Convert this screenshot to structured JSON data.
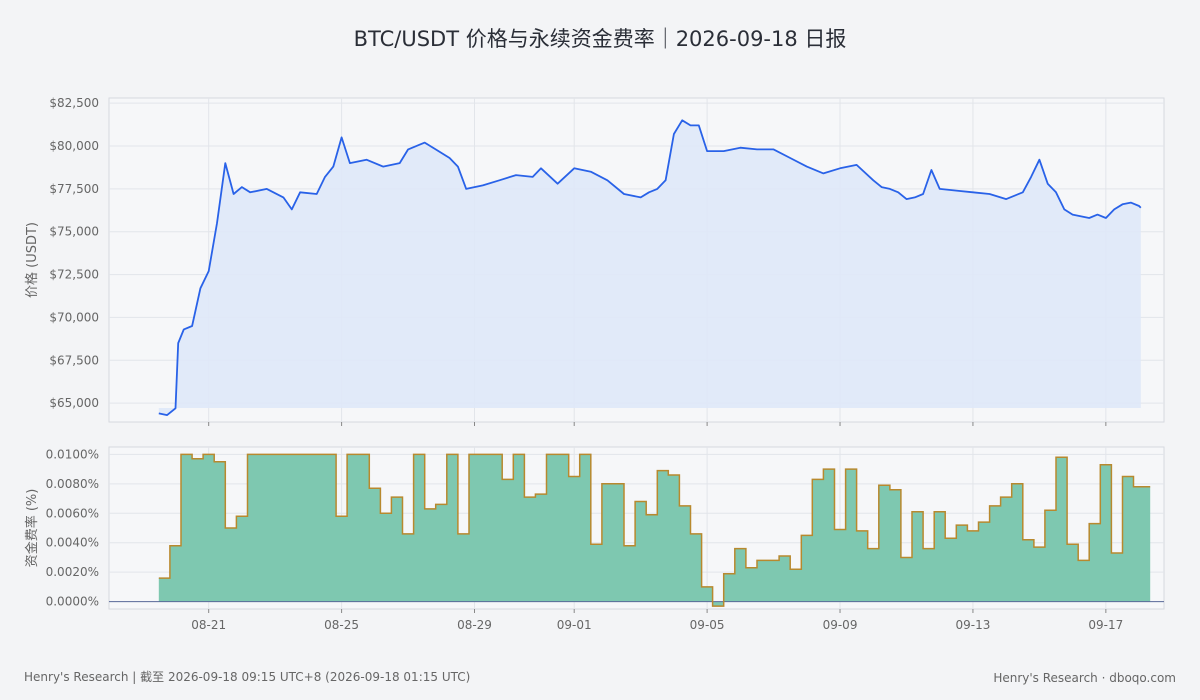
{
  "title": "BTC/USDT 价格与永续资金费率｜2026-09-18 日报",
  "footer": {
    "left": "Henry's Research | 截至 2026-09-18 09:15 UTC+8 (2026-09-18 01:15 UTC)",
    "right": "Henry's Research · dboqo.com"
  },
  "colors": {
    "price_line": "#2962e8",
    "price_fill": "#dfe8f8",
    "funding_fill": "#7ec8b0",
    "funding_line": "#b8892e",
    "zero_line": "#5a6a9a",
    "grid": "#e2e5ea",
    "panel_bg": "#f6f7f9",
    "panel_border": "#d6d9df"
  },
  "chart_data": [
    {
      "type": "line",
      "ylabel": "价格 (USDT)",
      "y_ticks": [
        "$65,000",
        "$67,500",
        "$70,000",
        "$72,500",
        "$75,000",
        "$77,500",
        "$80,000",
        "$82,500"
      ],
      "y_tick_values": [
        65000,
        67500,
        70000,
        72500,
        75000,
        77500,
        80000,
        82500
      ],
      "ylim": [
        63900,
        82800
      ],
      "xlim": [
        "2026-08-18 00:00",
        "2026-09-18 18:00"
      ],
      "area_fill": true,
      "grid": true,
      "series": [
        {
          "x": [
            "2026-08-19 12:00",
            "2026-08-19 18:00",
            "2026-08-20 00:00",
            "2026-08-20 02:00",
            "2026-08-20 06:00",
            "2026-08-20 12:00",
            "2026-08-20 18:00",
            "2026-08-21 00:00",
            "2026-08-21 06:00",
            "2026-08-21 12:00",
            "2026-08-21 18:00",
            "2026-08-22 00:00",
            "2026-08-22 06:00",
            "2026-08-22 18:00",
            "2026-08-23 06:00",
            "2026-08-23 12:00",
            "2026-08-23 18:00",
            "2026-08-24 06:00",
            "2026-08-24 12:00",
            "2026-08-24 18:00",
            "2026-08-25 00:00",
            "2026-08-25 06:00",
            "2026-08-25 18:00",
            "2026-08-26 06:00",
            "2026-08-26 18:00",
            "2026-08-27 00:00",
            "2026-08-27 12:00",
            "2026-08-27 20:00",
            "2026-08-28 06:00",
            "2026-08-28 12:00",
            "2026-08-28 18:00",
            "2026-08-29 06:00",
            "2026-08-29 18:00",
            "2026-08-30 06:00",
            "2026-08-30 18:00",
            "2026-08-31 00:00",
            "2026-08-31 12:00",
            "2026-09-01 00:00",
            "2026-09-01 12:00",
            "2026-09-02 00:00",
            "2026-09-02 12:00",
            "2026-09-03 00:00",
            "2026-09-03 06:00",
            "2026-09-03 12:00",
            "2026-09-03 18:00",
            "2026-09-04 00:00",
            "2026-09-04 06:00",
            "2026-09-04 12:00",
            "2026-09-04 18:00",
            "2026-09-05 00:00",
            "2026-09-05 12:00",
            "2026-09-06 00:00",
            "2026-09-06 12:00",
            "2026-09-07 00:00",
            "2026-09-07 12:00",
            "2026-09-08 00:00",
            "2026-09-08 12:00",
            "2026-09-09 00:00",
            "2026-09-09 12:00",
            "2026-09-10 00:00",
            "2026-09-10 06:00",
            "2026-09-10 12:00",
            "2026-09-10 18:00",
            "2026-09-11 00:00",
            "2026-09-11 06:00",
            "2026-09-11 12:00",
            "2026-09-11 18:00",
            "2026-09-12 00:00",
            "2026-09-12 12:00",
            "2026-09-13 00:00",
            "2026-09-13 12:00",
            "2026-09-14 00:00",
            "2026-09-14 12:00",
            "2026-09-14 18:00",
            "2026-09-15 00:00",
            "2026-09-15 06:00",
            "2026-09-15 12:00",
            "2026-09-15 18:00",
            "2026-09-16 00:00",
            "2026-09-16 12:00",
            "2026-09-16 18:00",
            "2026-09-17 00:00",
            "2026-09-17 06:00",
            "2026-09-17 12:00",
            "2026-09-17 18:00",
            "2026-09-18 00:00",
            "2026-09-18 01:15"
          ],
          "y": [
            64400,
            64300,
            64700,
            68500,
            69300,
            69500,
            71700,
            72700,
            75500,
            79000,
            77200,
            77600,
            77300,
            77500,
            77000,
            76300,
            77300,
            77200,
            78200,
            78800,
            80500,
            79000,
            79200,
            78800,
            79000,
            79800,
            80200,
            79800,
            79300,
            78800,
            77500,
            77700,
            78000,
            78300,
            78200,
            78700,
            77800,
            78700,
            78500,
            78000,
            77200,
            77000,
            77300,
            77500,
            78000,
            80700,
            81500,
            81200,
            81200,
            79700,
            79700,
            79900,
            79800,
            79800,
            79300,
            78800,
            78400,
            78700,
            78900,
            78000,
            77600,
            77500,
            77300,
            76900,
            77000,
            77200,
            78600,
            77500,
            77400,
            77300,
            77200,
            76900,
            77300,
            78200,
            79200,
            77800,
            77300,
            76300,
            76000,
            75800,
            76000,
            75800,
            76300,
            76600,
            76700,
            76500,
            76400
          ]
        }
      ]
    },
    {
      "type": "area",
      "ylabel": "资金费率 (%)",
      "y_ticks": [
        "0.0000%",
        "0.0020%",
        "0.0040%",
        "0.0060%",
        "0.0080%",
        "0.0100%"
      ],
      "y_tick_values": [
        0,
        0.002,
        0.004,
        0.006,
        0.008,
        0.01
      ],
      "ylim": [
        -0.0005,
        0.0105
      ],
      "xlim": [
        "2026-08-18 00:00",
        "2026-09-18 18:00"
      ],
      "x_ticks": [
        "08-21",
        "08-25",
        "08-29",
        "09-01",
        "09-05",
        "09-09",
        "09-13",
        "09-17"
      ],
      "x_tick_values": [
        "2026-08-21",
        "2026-08-25",
        "2026-08-29",
        "2026-09-01",
        "2026-09-05",
        "2026-09-09",
        "2026-09-13",
        "2026-09-17"
      ],
      "step": true,
      "grid": true,
      "series": [
        {
          "x": [
            "2026-08-19 12:00",
            "2026-08-19 20:00",
            "2026-08-20 04:00",
            "2026-08-20 12:00",
            "2026-08-20 20:00",
            "2026-08-21 04:00",
            "2026-08-21 12:00",
            "2026-08-21 20:00",
            "2026-08-22 04:00",
            "2026-08-22 12:00",
            "2026-08-22 20:00",
            "2026-08-23 04:00",
            "2026-08-23 12:00",
            "2026-08-23 20:00",
            "2026-08-24 04:00",
            "2026-08-24 12:00",
            "2026-08-24 20:00",
            "2026-08-25 04:00",
            "2026-08-25 12:00",
            "2026-08-25 20:00",
            "2026-08-26 04:00",
            "2026-08-26 12:00",
            "2026-08-26 20:00",
            "2026-08-27 04:00",
            "2026-08-27 12:00",
            "2026-08-27 20:00",
            "2026-08-28 04:00",
            "2026-08-28 12:00",
            "2026-08-28 20:00",
            "2026-08-29 04:00",
            "2026-08-29 12:00",
            "2026-08-29 20:00",
            "2026-08-30 04:00",
            "2026-08-30 12:00",
            "2026-08-30 20:00",
            "2026-08-31 04:00",
            "2026-08-31 12:00",
            "2026-08-31 20:00",
            "2026-09-01 04:00",
            "2026-09-01 12:00",
            "2026-09-01 20:00",
            "2026-09-02 04:00",
            "2026-09-02 12:00",
            "2026-09-02 20:00",
            "2026-09-03 04:00",
            "2026-09-03 12:00",
            "2026-09-03 20:00",
            "2026-09-04 04:00",
            "2026-09-04 12:00",
            "2026-09-04 20:00",
            "2026-09-05 04:00",
            "2026-09-05 12:00",
            "2026-09-05 20:00",
            "2026-09-06 04:00",
            "2026-09-06 12:00",
            "2026-09-06 20:00",
            "2026-09-07 04:00",
            "2026-09-07 12:00",
            "2026-09-07 20:00",
            "2026-09-08 04:00",
            "2026-09-08 12:00",
            "2026-09-08 20:00",
            "2026-09-09 04:00",
            "2026-09-09 12:00",
            "2026-09-09 20:00",
            "2026-09-10 04:00",
            "2026-09-10 12:00",
            "2026-09-10 20:00",
            "2026-09-11 04:00",
            "2026-09-11 12:00",
            "2026-09-11 20:00",
            "2026-09-12 04:00",
            "2026-09-12 12:00",
            "2026-09-12 20:00",
            "2026-09-13 04:00",
            "2026-09-13 12:00",
            "2026-09-13 20:00",
            "2026-09-14 04:00",
            "2026-09-14 12:00",
            "2026-09-14 20:00",
            "2026-09-15 04:00",
            "2026-09-15 12:00",
            "2026-09-15 20:00",
            "2026-09-16 04:00",
            "2026-09-16 12:00",
            "2026-09-16 20:00",
            "2026-09-17 04:00",
            "2026-09-17 12:00",
            "2026-09-17 20:00",
            "2026-09-18 04:00",
            "2026-09-18 08:00"
          ],
          "y": [
            0.0016,
            0.0038,
            0.01,
            0.0097,
            0.01,
            0.0095,
            0.005,
            0.0058,
            0.01,
            0.01,
            0.01,
            0.01,
            0.01,
            0.01,
            0.01,
            0.01,
            0.0058,
            0.01,
            0.01,
            0.0077,
            0.006,
            0.0071,
            0.0046,
            0.01,
            0.0063,
            0.0066,
            0.01,
            0.0046,
            0.01,
            0.01,
            0.01,
            0.0083,
            0.01,
            0.0071,
            0.0073,
            0.01,
            0.01,
            0.0085,
            0.01,
            0.0039,
            0.008,
            0.008,
            0.0038,
            0.0068,
            0.0059,
            0.0089,
            0.0086,
            0.0065,
            0.0046,
            0.001,
            -0.0003,
            0.0019,
            0.0036,
            0.0023,
            0.0028,
            0.0028,
            0.0031,
            0.0022,
            0.0045,
            0.0083,
            0.009,
            0.0049,
            0.009,
            0.0048,
            0.0036,
            0.0079,
            0.0076,
            0.003,
            0.0061,
            0.0036,
            0.0061,
            0.0043,
            0.0052,
            0.0048,
            0.0054,
            0.0065,
            0.0071,
            0.008,
            0.0042,
            0.0037,
            0.0062,
            0.0098,
            0.0039,
            0.0028,
            0.0053,
            0.0093,
            0.0033,
            0.0085,
            0.0078,
            0.0078,
            0.0078
          ]
        }
      ]
    }
  ]
}
